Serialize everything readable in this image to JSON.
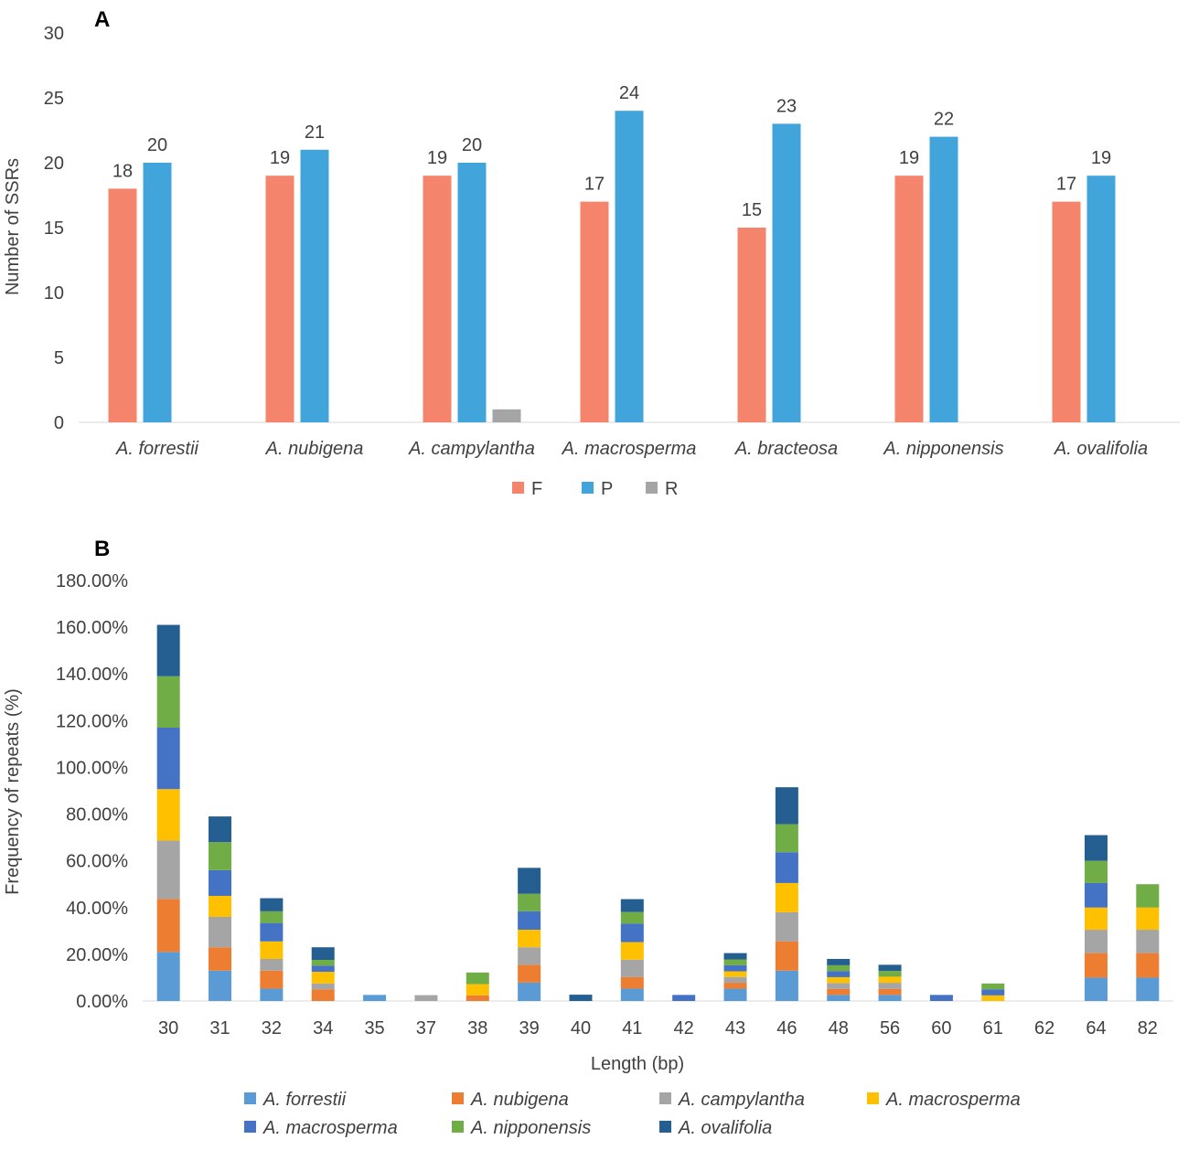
{
  "charts": [
    {
      "panel_label": "A",
      "chart_data": {
        "type": "bar",
        "title": "",
        "xlabel": "",
        "ylabel": "Number of SSRs",
        "ylim": [
          0,
          30
        ],
        "yticks": [
          "0",
          "5",
          "10",
          "15",
          "20",
          "25",
          "30"
        ],
        "categories": [
          "A. forrestii",
          "A. nubigena",
          "A. campylantha",
          "A. macrosperma",
          "A. bracteosa",
          "A. nipponensis",
          "A. ovalifolia"
        ],
        "series": [
          {
            "name": "F",
            "color": "#f4846b",
            "values": [
              18,
              19,
              19,
              17,
              15,
              19,
              17
            ],
            "labels": [
              "18",
              "19",
              "19",
              "17",
              "15",
              "19",
              "17"
            ]
          },
          {
            "name": "P",
            "color": "#41a4db",
            "values": [
              20,
              21,
              20,
              24,
              23,
              22,
              19
            ],
            "labels": [
              "20",
              "21",
              "20",
              "24",
              "23",
              "22",
              "19"
            ]
          },
          {
            "name": "R",
            "color": "#a5a5a5",
            "values": [
              0,
              0,
              1,
              0,
              0,
              0,
              0
            ],
            "labels": [
              "",
              "",
              "",
              "",
              "",
              "",
              ""
            ]
          }
        ],
        "legend": "bottom",
        "grid": false
      }
    },
    {
      "panel_label": "B",
      "chart_data": {
        "type": "bar",
        "stacked": true,
        "title": "",
        "xlabel": "Length (bp)",
        "ylabel": "Frequency of repeats (%)",
        "ylim": [
          0,
          180
        ],
        "yticks": [
          "0.00%",
          "20.00%",
          "40.00%",
          "60.00%",
          "80.00%",
          "100.00%",
          "120.00%",
          "140.00%",
          "160.00%",
          "180.00%"
        ],
        "categories": [
          "30",
          "31",
          "32",
          "34",
          "35",
          "37",
          "38",
          "39",
          "40",
          "41",
          "42",
          "43",
          "46",
          "48",
          "56",
          "60",
          "61",
          "62",
          "64",
          "82"
        ],
        "series": [
          {
            "name": "A. forrestii",
            "color": "#5b9bd5",
            "values": [
              21,
              13,
              5.3,
              0,
              2.6,
              0,
              0,
              7.9,
              0,
              5.3,
              0,
              5.3,
              13,
              2.6,
              2.6,
              0,
              0,
              0,
              10,
              10
            ]
          },
          {
            "name": "A. nubigena",
            "color": "#ed7d31",
            "values": [
              22.7,
              10,
              7.7,
              5,
              0,
              0,
              2.4,
              7.6,
              0,
              4.9,
              0,
              2.5,
              12.5,
              2.6,
              2.6,
              0,
              0,
              0,
              10.5,
              10.5
            ]
          },
          {
            "name": "A. campylantha",
            "color": "#a5a5a5",
            "values": [
              25,
              13,
              5,
              2.5,
              0,
              2.5,
              0,
              7.5,
              0,
              7.5,
              0,
              2.5,
              12.5,
              2.5,
              2.6,
              0,
              0,
              0,
              10,
              10
            ]
          },
          {
            "name": "A. macrosperma",
            "color": "#ffc000",
            "values": [
              22,
              9,
              7.5,
              5,
              0,
              0,
              4.8,
              7.5,
              0,
              7.5,
              0,
              2.4,
              12.5,
              2.5,
              2.6,
              0,
              2.4,
              0,
              9.5,
              9.5
            ]
          },
          {
            "name": "A. macrosperma",
            "color": "#4472c4",
            "values": [
              26.3,
              11,
              7.9,
              2.6,
              0,
              0,
              0,
              7.9,
              0,
              7.9,
              2.6,
              2.6,
              13.2,
              2.6,
              0,
              2.6,
              2.6,
              0,
              10.5,
              0
            ]
          },
          {
            "name": "A. nipponensis",
            "color": "#70ad47",
            "values": [
              22,
              12,
              5,
              2.5,
              0,
              0,
              5,
              7.5,
              0,
              5,
              0,
              2.5,
              12,
              2.5,
              2.5,
              0,
              2.5,
              0,
              9.5,
              10
            ]
          },
          {
            "name": "A. ovalifolia",
            "color": "#255e91",
            "values": [
              22,
              11,
              5.6,
              5.4,
              0,
              0,
              0,
              11.1,
              2.7,
              5.5,
              0,
              2.7,
              15.8,
              2.7,
              2.6,
              0,
              0,
              0,
              11,
              0
            ]
          }
        ],
        "legend": "bottom",
        "grid": false
      }
    }
  ]
}
